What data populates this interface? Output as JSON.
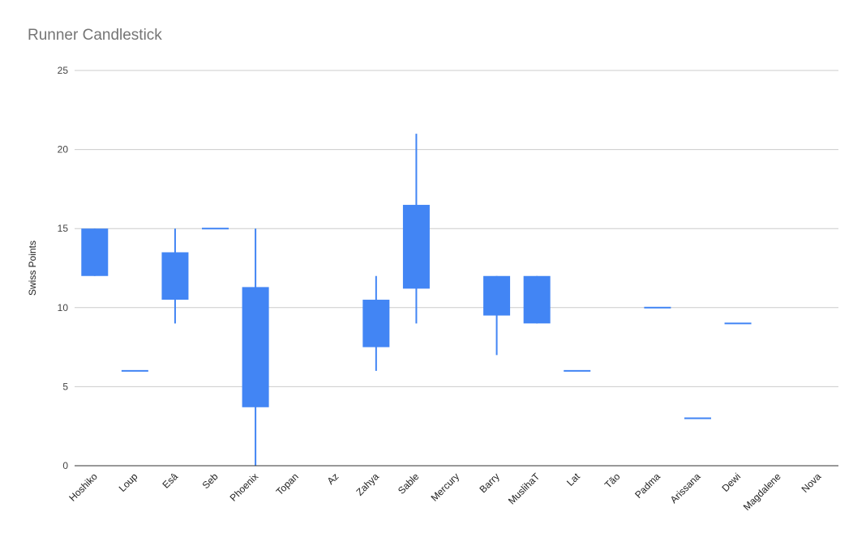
{
  "chart_data": {
    "type": "candlestick",
    "title": "Runner Candlestick",
    "ylabel": "Swiss Points",
    "xlabel": "",
    "ylim": [
      0,
      25
    ],
    "yticks": [
      0,
      5,
      10,
      15,
      20,
      25
    ],
    "grid": true,
    "legend": "none",
    "colors": {
      "series": "#4285f4",
      "grid": "#cccccc",
      "axis": "#333333"
    },
    "categories": [
      "Hoshiko",
      "Loup",
      "Esâ",
      "Seb",
      "Phoenix",
      "Topan",
      "Az",
      "Zahya",
      "Sable",
      "Mercury",
      "Barry",
      "MuslihaT",
      "Lat",
      "Tão",
      "Padma",
      "Arissana",
      "Dewi",
      "Magdalene",
      "Nova"
    ],
    "series": [
      {
        "low": 12,
        "open": 12,
        "close": 15,
        "high": 15
      },
      {
        "low": 6,
        "open": 6,
        "close": 6,
        "high": 6
      },
      {
        "low": 9,
        "open": 10.5,
        "close": 13.5,
        "high": 15
      },
      {
        "low": 15,
        "open": 15,
        "close": 15,
        "high": 15
      },
      {
        "low": 0,
        "open": 3.7,
        "close": 11.3,
        "high": 15
      },
      null,
      null,
      {
        "low": 6,
        "open": 7.5,
        "close": 10.5,
        "high": 12
      },
      {
        "low": 9,
        "open": 11.2,
        "close": 16.5,
        "high": 21
      },
      null,
      {
        "low": 7,
        "open": 9.5,
        "close": 12,
        "high": 12
      },
      {
        "low": 9,
        "open": 9,
        "close": 12,
        "high": 12
      },
      {
        "low": 6,
        "open": 6,
        "close": 6,
        "high": 6
      },
      null,
      {
        "low": 10,
        "open": 10,
        "close": 10,
        "high": 10
      },
      {
        "low": 3,
        "open": 3,
        "close": 3,
        "high": 3
      },
      {
        "low": 9,
        "open": 9,
        "close": 9,
        "high": 9
      },
      null,
      null
    ]
  }
}
